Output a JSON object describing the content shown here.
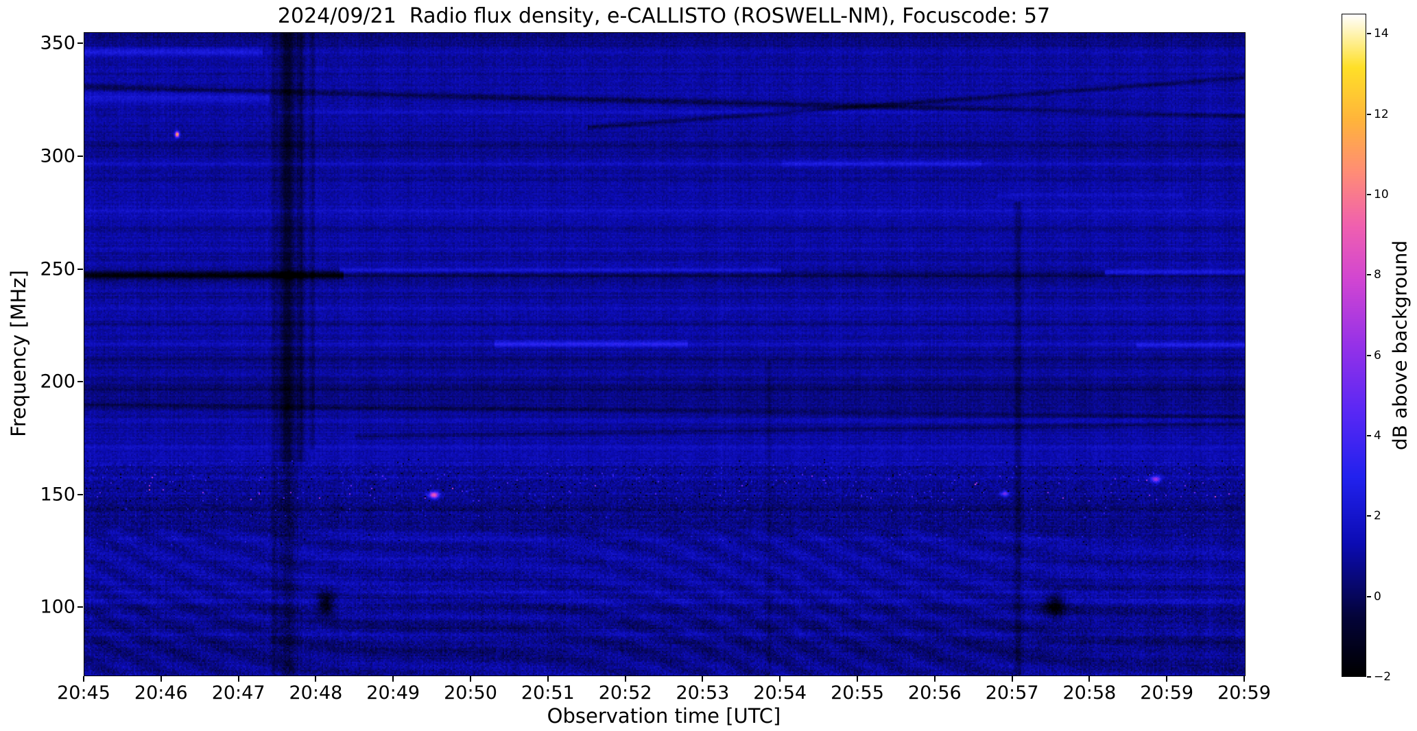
{
  "chart_data": {
    "type": "heatmap",
    "title": "2024/09/21  Radio flux density, e-CALLISTO (ROSWELL-NM), Focuscode: 57",
    "xlabel": "Observation time [UTC]",
    "ylabel": "Frequency [MHz]",
    "colorbar_label": "dB above background",
    "x_tick_labels": [
      "20:45",
      "20:46",
      "20:47",
      "20:48",
      "20:49",
      "20:50",
      "20:51",
      "20:52",
      "20:53",
      "20:54",
      "20:55",
      "20:56",
      "20:57",
      "20:58",
      "20:59",
      "20:59"
    ],
    "y_tick_values": [
      350,
      300,
      250,
      200,
      150,
      100
    ],
    "x_range_min": [
      0,
      15
    ],
    "y_range_mhz": [
      70,
      355
    ],
    "value_range_db": [
      -2,
      14.5
    ],
    "colorbar_tick_values": [
      -2,
      0,
      2,
      4,
      6,
      8,
      10,
      12,
      14
    ],
    "background_db": 0.9,
    "colormap_stops": [
      {
        "t": 0.0,
        "c": "#000000"
      },
      {
        "t": 0.09,
        "c": "#04043a"
      },
      {
        "t": 0.2,
        "c": "#0c0cb4"
      },
      {
        "t": 0.3,
        "c": "#2222ee"
      },
      {
        "t": 0.4,
        "c": "#5a28f5"
      },
      {
        "t": 0.5,
        "c": "#9632e8"
      },
      {
        "t": 0.6,
        "c": "#d246d2"
      },
      {
        "t": 0.68,
        "c": "#f060b0"
      },
      {
        "t": 0.76,
        "c": "#ff8c78"
      },
      {
        "t": 0.84,
        "c": "#ffb43c"
      },
      {
        "t": 0.92,
        "c": "#ffe028"
      },
      {
        "t": 1.0,
        "c": "#ffffff"
      }
    ],
    "noise": {
      "speckle": 0.75,
      "row": 0.45,
      "col": 0.22,
      "low_cut": 165,
      "low_dim": 0.22,
      "low_extra": 0.85,
      "moire_cut": 135,
      "moire_amp": 0.32
    },
    "h_features": [
      {
        "f": 346.5,
        "w": 1.8,
        "amp": 1.7,
        "t0": 0,
        "t1": 2.3
      },
      {
        "f": 346.5,
        "w": 1.5,
        "amp": 0.6,
        "t0": 2.3,
        "t1": 15
      },
      {
        "f": 339,
        "w": 1.2,
        "amp": 0.45,
        "t0": 0,
        "t1": 15
      },
      {
        "f": 331,
        "w": 1.3,
        "amp": -1.25,
        "t0": 0,
        "t1": 15,
        "slope": -0.85
      },
      {
        "f": 326,
        "w": 2.2,
        "amp": 1.0,
        "t0": 0,
        "t1": 2.4
      },
      {
        "f": 320,
        "w": 1.4,
        "amp": 0.55,
        "t0": 2.5,
        "t1": 15
      },
      {
        "f": 313,
        "w": 1.1,
        "amp": -1.1,
        "t0": 6.5,
        "t1": 15,
        "slope": 2.6
      },
      {
        "f": 305,
        "w": 1.1,
        "amp": -0.55,
        "t0": 0,
        "t1": 15
      },
      {
        "f": 297,
        "w": 1.4,
        "amp": 0.75,
        "t0": 0,
        "t1": 15
      },
      {
        "f": 297,
        "w": 1.3,
        "amp": 0.9,
        "t0": 9,
        "t1": 11.6
      },
      {
        "f": 290,
        "w": 1.0,
        "amp": -0.5,
        "t0": 0,
        "t1": 15
      },
      {
        "f": 283,
        "w": 1.1,
        "amp": 0.6,
        "t0": 11.8,
        "t1": 14.2
      },
      {
        "f": 276,
        "w": 1.0,
        "amp": 0.4,
        "t0": 0,
        "t1": 15
      },
      {
        "f": 268,
        "w": 1.2,
        "amp": -0.6,
        "t0": 0,
        "t1": 15
      },
      {
        "f": 259,
        "w": 1.1,
        "amp": 0.45,
        "t0": 0,
        "t1": 15
      },
      {
        "f": 253,
        "w": 1.0,
        "amp": 0.5,
        "t0": 0,
        "t1": 15
      },
      {
        "f": 247.5,
        "w": 1.5,
        "amp": -2.7,
        "t0": 0,
        "t1": 3.35
      },
      {
        "f": 247.5,
        "w": 1.0,
        "amp": -1.0,
        "t0": 3.35,
        "t1": 15
      },
      {
        "f": 249.8,
        "w": 1.1,
        "amp": 1.3,
        "t0": 3.3,
        "t1": 9.0
      },
      {
        "f": 248.8,
        "w": 1.3,
        "amp": 1.9,
        "t0": 13.2,
        "t1": 15
      },
      {
        "f": 241,
        "w": 1.1,
        "amp": 0.4,
        "t0": 0,
        "t1": 15
      },
      {
        "f": 233,
        "w": 1.3,
        "amp": 0.55,
        "t0": 0,
        "t1": 15
      },
      {
        "f": 226,
        "w": 1.0,
        "amp": -0.5,
        "t0": 0,
        "t1": 15
      },
      {
        "f": 217,
        "w": 1.3,
        "amp": 0.45,
        "t0": 0,
        "t1": 15
      },
      {
        "f": 217,
        "w": 1.4,
        "amp": 1.5,
        "t0": 5.3,
        "t1": 7.8
      },
      {
        "f": 216.5,
        "w": 1.2,
        "amp": 1.2,
        "t0": 13.6,
        "t1": 15
      },
      {
        "f": 210,
        "w": 0.9,
        "amp": -0.6,
        "t0": 0,
        "t1": 15
      },
      {
        "f": 204,
        "w": 1.1,
        "amp": 0.45,
        "t0": 0,
        "t1": 15
      },
      {
        "f": 197,
        "w": 1.0,
        "amp": -0.6,
        "t0": 0,
        "t1": 15
      },
      {
        "f": 190,
        "w": 1.1,
        "amp": -0.9,
        "t0": 0,
        "t1": 15,
        "slope": -0.35
      },
      {
        "f": 183,
        "w": 1.2,
        "amp": 0.6,
        "t0": 0,
        "t1": 15
      },
      {
        "f": 176,
        "w": 1.1,
        "amp": -0.8,
        "t0": 3.5,
        "t1": 15,
        "slope": 0.5
      },
      {
        "f": 171,
        "w": 1.1,
        "amp": 0.5,
        "t0": 0,
        "t1": 15
      },
      {
        "f": 164,
        "w": 1.0,
        "amp": 0.5,
        "t0": 0,
        "t1": 15
      },
      {
        "f": 158,
        "w": 0.8,
        "amp": 0.45,
        "t0": 0,
        "t1": 15
      },
      {
        "f": 150.5,
        "w": 0.8,
        "amp": 0.4,
        "t0": 0,
        "t1": 15
      },
      {
        "f": 143.5,
        "w": 0.8,
        "amp": -0.55,
        "t0": 0,
        "t1": 15
      },
      {
        "f": 131,
        "w": 1.0,
        "amp": 0.4,
        "t0": 0,
        "t1": 15
      },
      {
        "f": 120,
        "w": 1.0,
        "amp": -0.4,
        "t0": 0,
        "t1": 15
      },
      {
        "f": 107,
        "w": 1.0,
        "amp": 0.5,
        "t0": 0,
        "t1": 15
      },
      {
        "f": 103,
        "w": 1.2,
        "amp": 0.55,
        "t0": 0,
        "t1": 15
      },
      {
        "f": 96,
        "w": 1.1,
        "amp": 0.4,
        "t0": 0,
        "t1": 15
      },
      {
        "f": 88,
        "w": 2.0,
        "amp": 0.6,
        "t0": 0,
        "t1": 15
      }
    ],
    "v_features": [
      {
        "t": 2.62,
        "w": 0.1,
        "amp": -1.8,
        "f0": 165,
        "f1": 355
      },
      {
        "t": 2.62,
        "w": 0.1,
        "amp": -0.9,
        "f0": 70,
        "f1": 165
      },
      {
        "t": 2.45,
        "w": 0.04,
        "amp": -0.7,
        "f0": 70,
        "f1": 355
      },
      {
        "t": 2.8,
        "w": 0.05,
        "amp": -1.1,
        "f0": 165,
        "f1": 355
      },
      {
        "t": 2.95,
        "w": 0.03,
        "amp": -0.8,
        "f0": 170,
        "f1": 355
      },
      {
        "t": 12.07,
        "w": 0.05,
        "amp": -1.0,
        "f0": 70,
        "f1": 280
      },
      {
        "t": 8.85,
        "w": 0.04,
        "amp": -0.5,
        "f0": 70,
        "f1": 210
      }
    ],
    "blobs": [
      {
        "t": 3.12,
        "f": 102,
        "rt": 0.1,
        "rf": 5,
        "amp": -2.5
      },
      {
        "t": 12.55,
        "f": 101,
        "rt": 0.12,
        "rf": 5,
        "amp": -2.5
      },
      {
        "t": 4.52,
        "f": 150,
        "rt": 0.06,
        "rf": 1.4,
        "amp": 8.5
      },
      {
        "t": 13.85,
        "f": 157,
        "rt": 0.06,
        "rf": 1.4,
        "amp": 5.5
      },
      {
        "t": 11.9,
        "f": 150.5,
        "rt": 0.05,
        "rf": 1.2,
        "amp": 4.5
      },
      {
        "t": 1.2,
        "f": 310,
        "rt": 0.025,
        "rf": 1.2,
        "amp": 12
      }
    ],
    "rfi_rows": [
      {
        "f0": 155,
        "f1": 160,
        "p_bright": 0.012,
        "bright_db": 2.2,
        "bright_spread": 2.5,
        "p_dark": 0.005,
        "dark_db": -1.6
      },
      {
        "f0": 147,
        "f1": 152,
        "p_bright": 0.012,
        "bright_db": 2.2,
        "bright_spread": 2.5,
        "p_dark": 0.005,
        "dark_db": -1.6
      },
      {
        "f0": 152,
        "f1": 155,
        "p_bright": 0.003,
        "bright_db": 2.0,
        "bright_spread": 1.5,
        "p_dark": 0.012,
        "dark_db": -1.8
      },
      {
        "f0": 140,
        "f1": 145,
        "p_bright": 0.007,
        "bright_db": 2.0,
        "bright_spread": 1.5,
        "p_dark": 0.005,
        "dark_db": -1.5
      },
      {
        "f0": 148,
        "f1": 159,
        "p_bright": 0.0015,
        "bright_db": 5.0,
        "bright_spread": 3.5,
        "p_dark": 0,
        "dark_db": 0
      },
      {
        "f0": 128,
        "f1": 133,
        "p_bright": 0.005,
        "bright_db": 2.2,
        "bright_spread": 1.2,
        "p_dark": 0.003,
        "dark_db": -1.5
      },
      {
        "f0": 160,
        "f1": 166,
        "p_bright": 0.006,
        "bright_db": 2.0,
        "bright_spread": 1.5,
        "p_dark": 0.004,
        "dark_db": -1.4
      }
    ]
  }
}
